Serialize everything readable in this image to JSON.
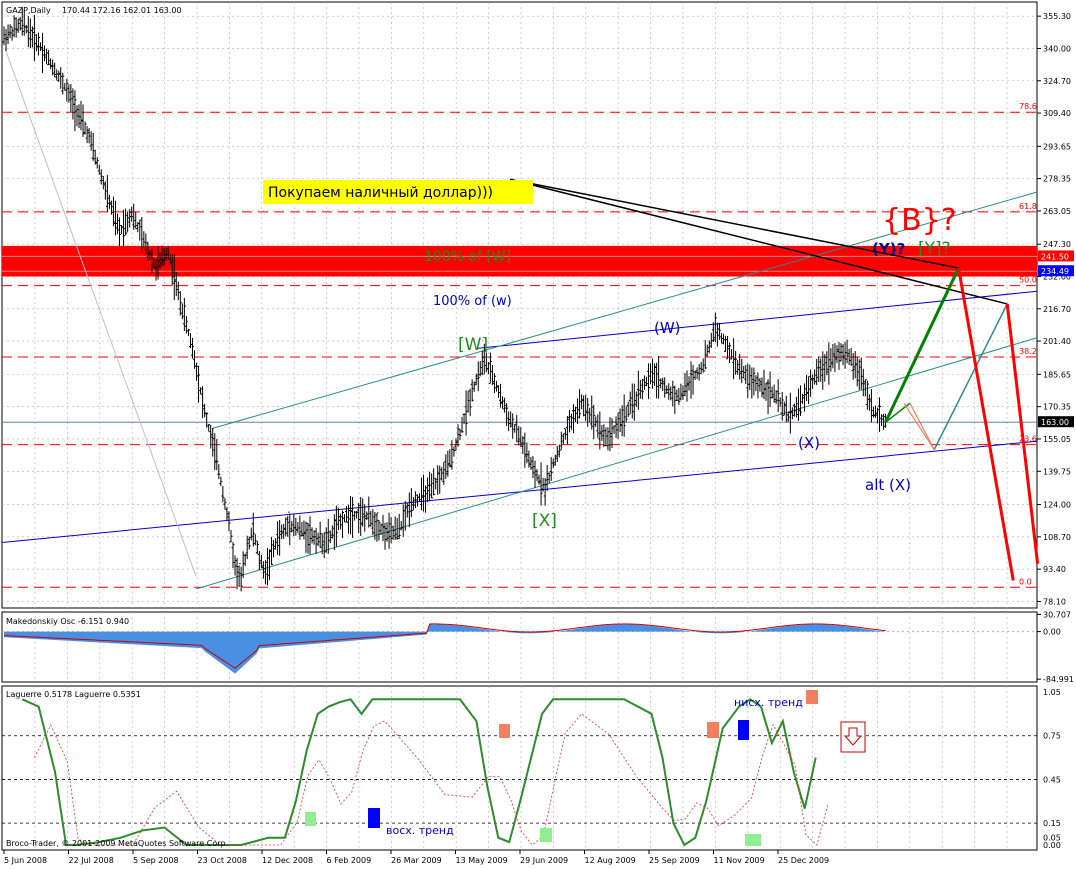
{
  "header": {
    "symbol": "GAZP,Daily",
    "ohlc": "170.44 172.16 162.01 163.00"
  },
  "chart_data": [
    {
      "type": "line",
      "panel": "price",
      "title": "GAZP,Daily",
      "ylim": [
        75,
        362
      ],
      "yticks": [
        "355.30",
        "340.00",
        "324.70",
        "309.40",
        "293.65",
        "278.35",
        "263.05",
        "247.30",
        "232.00",
        "216.70",
        "201.40",
        "185.65",
        "170.35",
        "155.05",
        "139.75",
        "124.00",
        "108.70",
        "93.40",
        "78.10"
      ],
      "x_labels": [
        "5 Jun 2008",
        "22 Jul 2008",
        "5 Sep 2008",
        "23 Oct 2008",
        "12 Dec 2008",
        "6 Feb 2009",
        "26 Mar 2009",
        "13 May 2009",
        "29 Jun 2009",
        "12 Aug 2009",
        "25 Sep 2009",
        "11 Nov 2009",
        "25 Dec 2009"
      ],
      "price_path": [
        [
          0,
          345
        ],
        [
          3,
          352
        ],
        [
          6,
          341
        ],
        [
          10,
          322
        ],
        [
          14,
          298
        ],
        [
          17,
          270
        ],
        [
          19,
          253
        ],
        [
          21,
          262
        ],
        [
          23,
          249
        ],
        [
          25,
          236
        ],
        [
          27,
          244
        ],
        [
          29,
          220
        ],
        [
          31,
          198
        ],
        [
          33,
          168
        ],
        [
          35,
          145
        ],
        [
          37,
          115
        ],
        [
          38,
          95
        ],
        [
          39,
          88
        ],
        [
          40,
          104
        ],
        [
          41,
          112
        ],
        [
          42,
          98
        ],
        [
          43,
          92
        ],
        [
          45,
          108
        ],
        [
          47,
          115
        ],
        [
          50,
          110
        ],
        [
          53,
          106
        ],
        [
          55,
          115
        ],
        [
          57,
          120
        ],
        [
          60,
          118
        ],
        [
          63,
          110
        ],
        [
          65,
          112
        ],
        [
          67,
          125
        ],
        [
          70,
          130
        ],
        [
          73,
          142
        ],
        [
          75,
          158
        ],
        [
          77,
          178
        ],
        [
          79,
          193
        ],
        [
          81,
          180
        ],
        [
          83,
          165
        ],
        [
          85,
          155
        ],
        [
          87,
          140
        ],
        [
          89,
          132
        ],
        [
          91,
          148
        ],
        [
          93,
          162
        ],
        [
          95,
          172
        ],
        [
          97,
          165
        ],
        [
          99,
          155
        ],
        [
          101,
          162
        ],
        [
          103,
          170
        ],
        [
          105,
          180
        ],
        [
          107,
          186
        ],
        [
          109,
          178
        ],
        [
          111,
          175
        ],
        [
          113,
          183
        ],
        [
          115,
          190
        ],
        [
          117,
          208
        ],
        [
          119,
          198
        ],
        [
          121,
          188
        ],
        [
          123,
          182
        ],
        [
          125,
          180
        ],
        [
          127,
          175
        ],
        [
          129,
          166
        ],
        [
          131,
          172
        ],
        [
          133,
          183
        ],
        [
          135,
          190
        ],
        [
          137,
          196
        ],
        [
          139,
          194
        ],
        [
          141,
          185
        ],
        [
          143,
          168
        ],
        [
          145,
          163
        ]
      ],
      "wave_points": [
        [
          0,
          352
        ],
        [
          39,
          84
        ],
        [
          79,
          197
        ],
        [
          89,
          130
        ],
        [
          111,
          207
        ],
        [
          137,
          167
        ],
        [
          145,
          163
        ],
        [
          157,
          236
        ],
        [
          165,
          219
        ],
        [
          153,
          150
        ]
      ],
      "horizontal_levels": [
        {
          "label": "78.6",
          "value": 309.8
        },
        {
          "label": "61.8",
          "value": 262.6
        },
        {
          "label": "50.0",
          "value": 227.7
        },
        {
          "label": "38.2",
          "value": 193.9
        },
        {
          "label": "23.6",
          "value": 152.4
        },
        {
          "label": "0.0",
          "value": 84.8
        }
      ],
      "price_labels": [
        {
          "value": 241.5,
          "text": "241.50",
          "color": "#ff0000"
        },
        {
          "value": 234.49,
          "text": "234.49",
          "color": "#0000ff"
        },
        {
          "value": 163.0,
          "text": "163.00",
          "color": "#000000"
        }
      ],
      "red_band": [
        232.0,
        246.5
      ],
      "annotations": [
        {
          "text": "Покупаем наличный доллар)))",
          "style": "yellow"
        },
        {
          "text": "100% of [W]",
          "color": "#228b22"
        },
        {
          "text": "100% of (w)",
          "color": "#0000cd"
        },
        {
          "text": "[W]",
          "color": "#228b22"
        },
        {
          "text": "(W)",
          "color": "#0000cd"
        },
        {
          "text": "[X]",
          "color": "#228b22"
        },
        {
          "text": "(X)",
          "color": "#0000cd"
        },
        {
          "text": "alt (X)",
          "color": "#0000cd"
        },
        {
          "text": "{B}?",
          "color": "#ff0000"
        },
        {
          "text": "(Y)?",
          "color": "#00008b"
        },
        {
          "text": "[Y]?",
          "color": "#228b22"
        }
      ]
    },
    {
      "type": "area",
      "panel": "oscillator",
      "title": "Makedonskiy Osc -6.151 0.940",
      "yticks": [
        "30.707",
        "0.00",
        "-84.991"
      ],
      "ylim": [
        -90,
        35
      ]
    },
    {
      "type": "line",
      "panel": "laguerre",
      "title": "Laguerre 0.5178 Laguerre 0.5351",
      "yticks": [
        "1.05",
        "0.75",
        "0.45",
        "0.15",
        "0.05",
        "0.00"
      ],
      "ylim": [
        0,
        1.05
      ],
      "levels": [
        0.75,
        0.45,
        0.15
      ],
      "annotations": [
        {
          "text": "нисх. тренд",
          "color": "#0000cd"
        },
        {
          "text": "восх. тренд",
          "color": "#0000cd"
        }
      ]
    }
  ],
  "footer": {
    "copyright": "Broco-Trader, © 2001-2009 MetaQuotes Software Corp."
  },
  "colors": {
    "grid": "#b0b0b0",
    "bars": "#000000",
    "red": "#ff0000",
    "green": "#008000",
    "teal": "#2e8b8b",
    "blue": "#0000cd",
    "osc_fill": "#4a90e2",
    "laguerre": "#2e8b2e"
  }
}
